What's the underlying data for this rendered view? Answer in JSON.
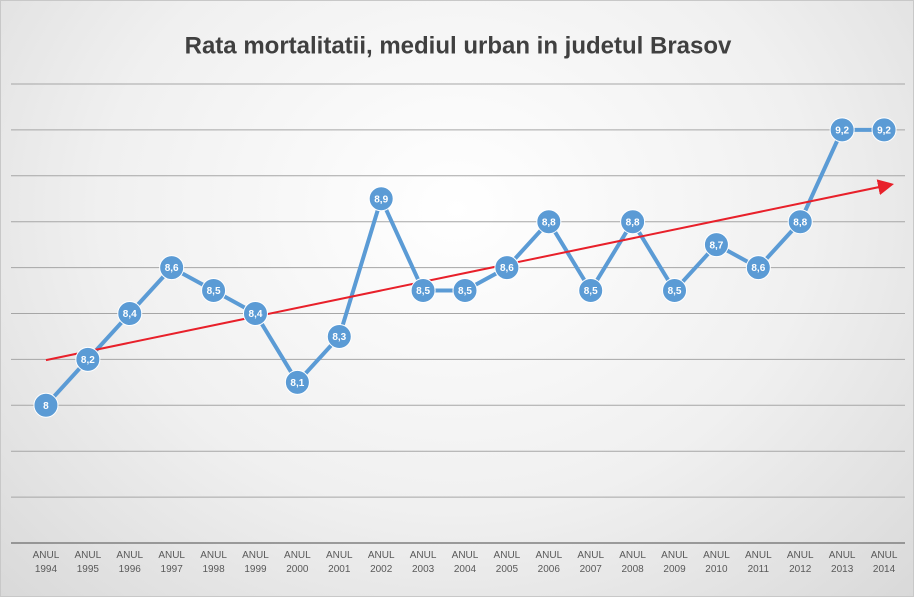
{
  "chart_data": {
    "type": "line",
    "title": "Rata mortalitatii, mediul urban in judetul Brasov",
    "categories": [
      "ANUL 1994",
      "ANUL 1995",
      "ANUL 1996",
      "ANUL 1997",
      "ANUL 1998",
      "ANUL 1999",
      "ANUL 2000",
      "ANUL 2001",
      "ANUL 2002",
      "ANUL 2003",
      "ANUL 2004",
      "ANUL 2005",
      "ANUL 2006",
      "ANUL 2007",
      "ANUL 2008",
      "ANUL 2009",
      "ANUL 2010",
      "ANUL 2011",
      "ANUL 2012",
      "ANUL 2013",
      "ANUL 2014"
    ],
    "values": [
      8,
      8.2,
      8.4,
      8.6,
      8.5,
      8.4,
      8.1,
      8.3,
      8.9,
      8.5,
      8.5,
      8.6,
      8.8,
      8.5,
      8.8,
      8.5,
      8.7,
      8.6,
      8.8,
      9.2,
      9.2
    ],
    "value_labels": [
      "8",
      "8,2",
      "8,4",
      "8,6",
      "8,5",
      "8,4",
      "8,1",
      "8,3",
      "8,9",
      "8,5",
      "8,5",
      "8,6",
      "8,8",
      "8,5",
      "8,8",
      "8,5",
      "8,7",
      "8,6",
      "8,8",
      "9,2",
      "9,2"
    ],
    "color": "#5b9bd5",
    "ylim": [
      7.4,
      9.4
    ],
    "yticks": [
      7.4,
      7.6,
      7.8,
      8.0,
      8.2,
      8.4,
      8.6,
      8.8,
      9.0,
      9.2,
      9.4
    ],
    "grid": true,
    "trendline": true,
    "trendline_color": "#e8202a"
  }
}
